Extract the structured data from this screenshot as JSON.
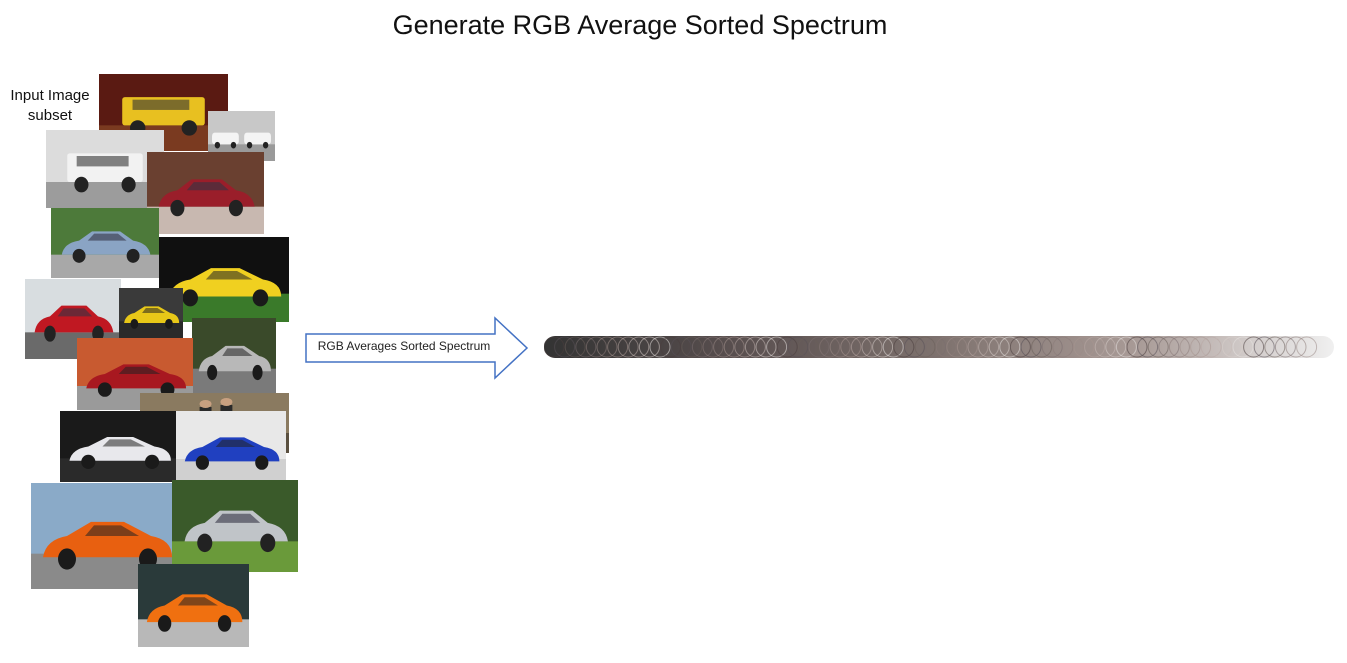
{
  "title": "Generate RGB Average Sorted Spectrum",
  "input_label_line1": "Input Image",
  "input_label_line2": "subset",
  "arrow_label": "RGB Averages Sorted Spectrum",
  "photos": [
    {
      "name": "photo-yellow-hummer",
      "bg": "#5a1a12",
      "floor": "#7a3a20",
      "car": "#e8c020",
      "shape": "suv"
    },
    {
      "name": "photo-white-cars-pair",
      "bg": "#c8c8c8",
      "floor": "#9a9a9a",
      "car": "#f4f4f4",
      "shape": "pair"
    },
    {
      "name": "photo-white-hummer",
      "bg": "#dcdcdc",
      "floor": "#9c9c9c",
      "car": "#f2f2f2",
      "shape": "suv"
    },
    {
      "name": "photo-red-sedan-garage",
      "bg": "#6a4030",
      "floor": "#c8b8b0",
      "car": "#9a1e2a",
      "shape": "sedan"
    },
    {
      "name": "photo-silver-sedan",
      "bg": "#4d7a3a",
      "floor": "#a8a8a8",
      "car": "#8aa4c4",
      "shape": "sedan"
    },
    {
      "name": "photo-yellow-coupe",
      "bg": "#101010",
      "floor": "#3a7a2a",
      "car": "#f0d020",
      "shape": "coupe"
    },
    {
      "name": "photo-red-sedan-road",
      "bg": "#d8dde0",
      "floor": "#6a6a6a",
      "car": "#c01822",
      "shape": "sedan"
    },
    {
      "name": "photo-yellow-rear",
      "bg": "#3a3a3a",
      "floor": "#2a2a2a",
      "car": "#e8c818",
      "shape": "coupe"
    },
    {
      "name": "photo-silver-car-road",
      "bg": "#3a4a2a",
      "floor": "#7a7a7a",
      "car": "#b8b8b8",
      "shape": "coupe"
    },
    {
      "name": "photo-red-coupe-brick",
      "bg": "#c85a30",
      "floor": "#9a9a9a",
      "car": "#a81820",
      "shape": "coupe"
    },
    {
      "name": "photo-people-showroom",
      "bg": "#8a7a60",
      "floor": "#5a5040",
      "car": "#2a2a2a",
      "shape": "none"
    },
    {
      "name": "photo-white-aston",
      "bg": "#1a1a1a",
      "floor": "#2a2a2a",
      "car": "#e8e8ec",
      "shape": "coupe"
    },
    {
      "name": "photo-blue-aston",
      "bg": "#e8e8e8",
      "floor": "#d0d0d0",
      "car": "#2040c0",
      "shape": "coupe"
    },
    {
      "name": "photo-orange-r8",
      "bg": "#8aaac8",
      "floor": "#8a8a8a",
      "car": "#e86010",
      "shape": "coupe"
    },
    {
      "name": "photo-silver-car-grass",
      "bg": "#3a5a2a",
      "floor": "#6a9a3a",
      "car": "#c0c4c8",
      "shape": "sedan"
    },
    {
      "name": "photo-orange-tt",
      "bg": "#2a3a3a",
      "floor": "#b8b8b8",
      "car": "#f07010",
      "shape": "coupe"
    }
  ],
  "spectrum_colors": {
    "start": "#3a3a3a",
    "end": "#f2f2f2",
    "tints": [
      "#4a3e3e",
      "#585058",
      "#6a5e5a",
      "#7a6e70",
      "#8a7a78",
      "#9a8a86",
      "#a89690",
      "#b8a8a4",
      "#c8bcb8",
      "#d8d0cc",
      "#e6e2e0"
    ]
  }
}
